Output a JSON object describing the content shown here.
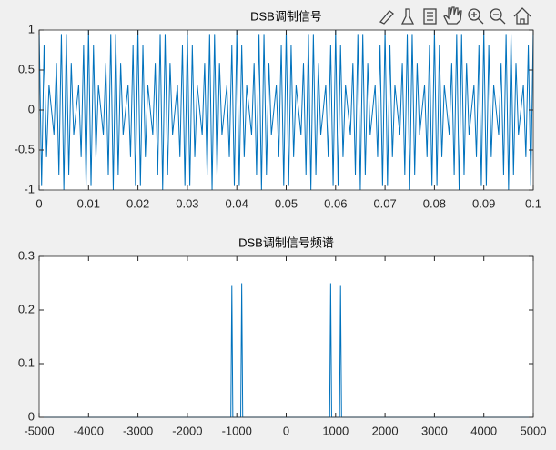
{
  "chart_data": [
    {
      "type": "line",
      "title": "DSB调制信号",
      "color": "#0072bd",
      "x": [
        0,
        0.0005,
        0.001,
        0.0015,
        0.002,
        0.0025,
        0.003,
        0.0035,
        0.004,
        0.0045,
        0.005,
        0.0055,
        0.006,
        0.0065,
        0.007,
        0.0075,
        0.008,
        0.0085,
        0.009,
        0.0095,
        0.01,
        0.0105,
        0.011,
        0.0115,
        0.012,
        0.0125,
        0.013,
        0.0135,
        0.014,
        0.0145,
        0.015,
        0.0155,
        0.016,
        0.0165,
        0.017,
        0.0175,
        0.018,
        0.0185,
        0.019,
        0.0195,
        0.02,
        0.0205,
        0.021,
        0.0215,
        0.022,
        0.0225,
        0.023,
        0.0235,
        0.024,
        0.0245,
        0.025,
        0.0255,
        0.026,
        0.0265,
        0.027,
        0.0275,
        0.028,
        0.0285,
        0.029,
        0.0295,
        0.03,
        0.0305,
        0.031,
        0.0315,
        0.032,
        0.0325,
        0.033,
        0.0335,
        0.034,
        0.0345,
        0.035,
        0.0355,
        0.036,
        0.0365,
        0.037,
        0.0375,
        0.038,
        0.0385,
        0.039,
        0.0395,
        0.04,
        0.0405,
        0.041,
        0.0415,
        0.042,
        0.0425,
        0.043,
        0.0435,
        0.044,
        0.0445,
        0.045,
        0.0455,
        0.046,
        0.0465,
        0.047,
        0.0475,
        0.048,
        0.0485,
        0.049,
        0.0495,
        0.05,
        0.0505,
        0.051,
        0.0515,
        0.052,
        0.0525,
        0.053,
        0.0535,
        0.054,
        0.0545,
        0.055,
        0.0555,
        0.056,
        0.0565,
        0.057,
        0.0575,
        0.058,
        0.0585,
        0.059,
        0.0595,
        0.06,
        0.0605,
        0.061,
        0.0615,
        0.062,
        0.0625,
        0.063,
        0.0635,
        0.064,
        0.0645,
        0.065,
        0.0655,
        0.066,
        0.0665,
        0.067,
        0.0675,
        0.068,
        0.0685,
        0.069,
        0.0695,
        0.07,
        0.0705,
        0.071,
        0.0715,
        0.072,
        0.0725,
        0.073,
        0.0735,
        0.074,
        0.0745,
        0.075,
        0.0755,
        0.076,
        0.0765,
        0.077,
        0.0775,
        0.078,
        0.0785,
        0.079,
        0.0795,
        0.08,
        0.0805,
        0.081,
        0.0815,
        0.082,
        0.0825,
        0.083,
        0.0835,
        0.084,
        0.0845,
        0.085,
        0.0855,
        0.086,
        0.0865,
        0.087,
        0.0875,
        0.088,
        0.0885,
        0.089,
        0.0895,
        0.09,
        0.0905,
        0.091,
        0.0915,
        0.092,
        0.0925,
        0.093,
        0.0935,
        0.094,
        0.0945,
        0.095,
        0.0955,
        0.096,
        0.0965,
        0.097,
        0.0975,
        0.098,
        0.0985,
        0.099,
        0.0995,
        0.1
      ],
      "values": [
        1,
        -0.95,
        0.81,
        -0.59,
        0.31,
        0,
        -0.31,
        0.59,
        -0.81,
        0.95,
        -1,
        0.95,
        -0.81,
        0.59,
        -0.31,
        0,
        0.31,
        -0.59,
        0.81,
        -0.95,
        1,
        -0.95,
        0.81,
        -0.59,
        0.31,
        0,
        -0.31,
        0.59,
        -0.81,
        0.95,
        -1,
        0.95,
        -0.81,
        0.59,
        -0.31,
        0,
        0.31,
        -0.59,
        0.81,
        -0.95,
        1,
        -0.95,
        0.81,
        -0.59,
        0.31,
        0,
        -0.31,
        0.59,
        -0.81,
        0.95,
        -1,
        0.95,
        -0.81,
        0.59,
        -0.31,
        0,
        0.31,
        -0.59,
        0.81,
        -0.95,
        1,
        -0.95,
        0.81,
        -0.59,
        0.31,
        0,
        -0.31,
        0.59,
        -0.81,
        0.95,
        -1,
        0.95,
        -0.81,
        0.59,
        -0.31,
        0,
        0.31,
        -0.59,
        0.81,
        -0.95,
        1,
        -0.95,
        0.81,
        -0.59,
        0.31,
        0,
        -0.31,
        0.59,
        -0.81,
        0.95,
        -1,
        0.95,
        -0.81,
        0.59,
        -0.31,
        0,
        0.31,
        -0.59,
        0.81,
        -0.95,
        1,
        -0.95,
        0.81,
        -0.59,
        0.31,
        0,
        -0.31,
        0.59,
        -0.81,
        0.95,
        -1,
        0.95,
        -0.81,
        0.59,
        -0.31,
        0,
        0.31,
        -0.59,
        0.81,
        -0.95,
        1,
        -0.95,
        0.81,
        -0.59,
        0.31,
        0,
        -0.31,
        0.59,
        -0.81,
        0.95,
        -1,
        0.95,
        -0.81,
        0.59,
        -0.31,
        0,
        0.31,
        -0.59,
        0.81,
        -0.95,
        1,
        -0.95,
        0.81,
        -0.59,
        0.31,
        0,
        -0.31,
        0.59,
        -0.81,
        0.95,
        -1,
        0.95,
        -0.81,
        0.59,
        -0.31,
        0,
        0.31,
        -0.59,
        0.81,
        -0.95,
        1,
        -0.95,
        0.81,
        -0.59,
        0.31,
        0,
        -0.31,
        0.59,
        -0.81,
        0.95,
        -1,
        0.95,
        -0.81,
        0.59,
        -0.31,
        0,
        0.31,
        -0.59,
        0.81,
        -0.95,
        1,
        -0.95,
        0.81,
        -0.59,
        0.31,
        0,
        -0.31,
        0.59,
        -0.81,
        0.95,
        -1,
        0.95,
        -0.81,
        0.59,
        -0.31,
        0,
        0.31,
        -0.59,
        0.81,
        -0.95,
        1
      ],
      "xlim": [
        0,
        0.1
      ],
      "xticks": [
        0,
        0.01,
        0.02,
        0.03,
        0.04,
        0.05,
        0.06,
        0.07,
        0.08,
        0.09,
        0.1
      ],
      "ylim": [
        -1,
        1
      ],
      "yticks": [
        -1,
        -0.5,
        0,
        0.5,
        1
      ]
    },
    {
      "type": "line",
      "title": "DSB调制信号频谱",
      "color": "#0072bd",
      "x": [
        -5000,
        -1120,
        -1100,
        -1080,
        -920,
        -900,
        -880,
        880,
        900,
        920,
        1080,
        1100,
        1120,
        5000
      ],
      "values": [
        0,
        0,
        0.245,
        0,
        0,
        0.25,
        0,
        0,
        0.25,
        0,
        0,
        0.245,
        0,
        0
      ],
      "xlim": [
        -5000,
        5000
      ],
      "xticks": [
        -5000,
        -4000,
        -3000,
        -2000,
        -1000,
        0,
        1000,
        2000,
        3000,
        4000,
        5000
      ],
      "ylim": [
        0,
        0.3
      ],
      "yticks": [
        0,
        0.1,
        0.2,
        0.3
      ]
    }
  ]
}
